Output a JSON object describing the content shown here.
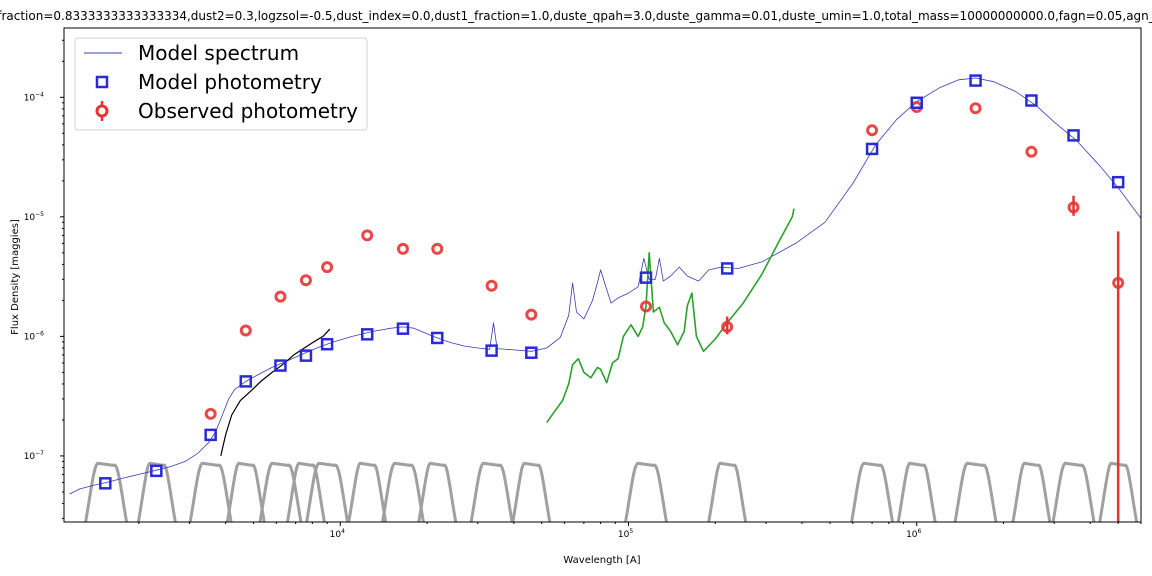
{
  "chart_data": {
    "type": "scatter",
    "title": "fraction=0.8333333333333334,dust2=0.3,logzsol=-0.5,dust_index=0.0,dust1_fraction=1.0,duste_qpah=3.0,duste_gamma=0.01,duste_umin=1.0,total_mass=10000000000.0,fagn=0.05,agn_",
    "xlabel": "Wavelength [A]",
    "ylabel": "Flux Density [maggies]",
    "xscale": "log",
    "yscale": "log",
    "xlim": [
      1100,
      6000000
    ],
    "ylim": [
      2.8e-08,
      0.00038
    ],
    "xticks": [
      {
        "value": 10000,
        "base": "10",
        "exp": "4"
      },
      {
        "value": 100000,
        "base": "10",
        "exp": "5"
      },
      {
        "value": 1000000,
        "base": "10",
        "exp": "6"
      }
    ],
    "yticks": [
      {
        "value": 1e-07,
        "base": "10",
        "exp": "−7"
      },
      {
        "value": 1e-06,
        "base": "10",
        "exp": "−6"
      },
      {
        "value": 1e-05,
        "base": "10",
        "exp": "−5"
      },
      {
        "value": 0.0001,
        "base": "10",
        "exp": "−4"
      }
    ],
    "legend_position": "top-left",
    "legend": [
      {
        "label": "Model spectrum",
        "marker": "line",
        "color": "#3b3bb3"
      },
      {
        "label": "Model photometry",
        "marker": "square",
        "color": "#2b2bd6"
      },
      {
        "label": "Observed photometry",
        "marker": "circle-errorbar",
        "color": "#e83333"
      }
    ],
    "series": [
      {
        "name": "Model spectrum",
        "color": "#3b3bb3",
        "points": [
          [
            1150,
            4.8e-08
          ],
          [
            1250,
            5.3e-08
          ],
          [
            1400,
            5.7e-08
          ],
          [
            1550,
            6e-08
          ],
          [
            1800,
            6.6e-08
          ],
          [
            2000,
            7e-08
          ],
          [
            2300,
            7.6e-08
          ],
          [
            2600,
            8.2e-08
          ],
          [
            2900,
            9e-08
          ],
          [
            3200,
            1.05e-07
          ],
          [
            3500,
            1.3e-07
          ],
          [
            3700,
            1.6e-07
          ],
          [
            3900,
            2.2e-07
          ],
          [
            4100,
            3e-07
          ],
          [
            4300,
            3.6e-07
          ],
          [
            4700,
            4.2e-07
          ],
          [
            5200,
            4.8e-07
          ],
          [
            5800,
            5.5e-07
          ],
          [
            6500,
            6.2e-07
          ],
          [
            7500,
            7.2e-07
          ],
          [
            8500,
            8.2e-07
          ],
          [
            9500,
            9e-07
          ],
          [
            11000,
            1e-06
          ],
          [
            13000,
            1.1e-06
          ],
          [
            15000,
            1.17e-06
          ],
          [
            16500,
            1.2e-06
          ],
          [
            18000,
            1.17e-06
          ],
          [
            21000,
            1e-06
          ],
          [
            24000,
            8.9e-07
          ],
          [
            27000,
            8.3e-07
          ],
          [
            30000,
            8e-07
          ],
          [
            33000,
            7.8e-07
          ],
          [
            34000,
            1.3e-06
          ],
          [
            35000,
            7.9e-07
          ],
          [
            40000,
            7.7e-07
          ],
          [
            46000,
            7.5e-07
          ],
          [
            52000,
            8e-07
          ],
          [
            58000,
            9.8e-07
          ],
          [
            62000,
            1.5e-06
          ],
          [
            64000,
            2.8e-06
          ],
          [
            66000,
            1.6e-06
          ],
          [
            70000,
            1.4e-06
          ],
          [
            75000,
            2e-06
          ],
          [
            78000,
            2.8e-06
          ],
          [
            80000,
            3.6e-06
          ],
          [
            83000,
            2.7e-06
          ],
          [
            87000,
            1.9e-06
          ],
          [
            92000,
            2.1e-06
          ],
          [
            100000,
            2.3e-06
          ],
          [
            108000,
            2.6e-06
          ],
          [
            113000,
            4.5e-06
          ],
          [
            118000,
            3e-06
          ],
          [
            124000,
            3e-06
          ],
          [
            128000,
            4.5e-06
          ],
          [
            132000,
            2.9e-06
          ],
          [
            140000,
            3.2e-06
          ],
          [
            150000,
            3.8e-06
          ],
          [
            160000,
            3.2e-06
          ],
          [
            175000,
            2.9e-06
          ],
          [
            190000,
            3.6e-06
          ],
          [
            210000,
            3.8e-06
          ],
          [
            240000,
            3.7e-06
          ],
          [
            290000,
            4.2e-06
          ],
          [
            380000,
            6e-06
          ],
          [
            480000,
            9e-06
          ],
          [
            600000,
            1.9e-05
          ],
          [
            720000,
            4e-05
          ],
          [
            850000,
            6.5e-05
          ],
          [
            1000000,
            9.2e-05
          ],
          [
            1200000,
            0.00012
          ],
          [
            1400000,
            0.00014
          ],
          [
            1600000,
            0.000145
          ],
          [
            1850000,
            0.000135
          ],
          [
            2200000,
            0.000112
          ],
          [
            2600000,
            8.5e-05
          ],
          [
            3000000,
            6.2e-05
          ],
          [
            3600000,
            4.3e-05
          ],
          [
            4300000,
            2.7e-05
          ],
          [
            5000000,
            1.75e-05
          ],
          [
            6000000,
            9.7e-06
          ]
        ]
      },
      {
        "name": "Model photometry",
        "color": "#2b2bd6",
        "points": [
          [
            1530,
            5.9e-08
          ],
          [
            2300,
            7.5e-08
          ],
          [
            3550,
            1.5e-07
          ],
          [
            4700,
            4.2e-07
          ],
          [
            6200,
            5.7e-07
          ],
          [
            7600,
            6.9e-07
          ],
          [
            9000,
            8.6e-07
          ],
          [
            12400,
            1.04e-06
          ],
          [
            16500,
            1.16e-06
          ],
          [
            21700,
            9.7e-07
          ],
          [
            33500,
            7.6e-07
          ],
          [
            46000,
            7.3e-07
          ],
          [
            115000,
            3.1e-06
          ],
          [
            220000,
            3.7e-06
          ],
          [
            700000,
            3.7e-05
          ],
          [
            1000000,
            9e-05
          ],
          [
            1600000,
            0.000138
          ],
          [
            2500000,
            9.4e-05
          ],
          [
            3500000,
            4.8e-05
          ],
          [
            5000000,
            1.95e-05
          ]
        ]
      },
      {
        "name": "Observed photometry",
        "color": "#e83333",
        "points": [
          [
            3550,
            2.25e-07,
            0.0
          ],
          [
            4700,
            1.12e-06,
            0.0
          ],
          [
            6200,
            2.15e-06,
            0.0
          ],
          [
            7600,
            2.95e-06,
            0.0
          ],
          [
            9000,
            3.8e-06,
            0.0
          ],
          [
            12400,
            7e-06,
            0.0
          ],
          [
            16500,
            5.4e-06,
            0.0
          ],
          [
            21700,
            5.4e-06,
            0.0
          ],
          [
            33500,
            2.65e-06,
            0.0
          ],
          [
            46000,
            1.52e-06,
            0.0
          ],
          [
            115000,
            1.78e-06,
            0.0
          ],
          [
            220000,
            1.2e-06,
            0.22
          ],
          [
            700000,
            5.3e-05,
            0.0
          ],
          [
            1000000,
            8.3e-05,
            0.0
          ],
          [
            1600000,
            8.1e-05,
            0.0
          ],
          [
            2500000,
            3.5e-05,
            0.0
          ],
          [
            3500000,
            1.2e-05,
            0.25
          ],
          [
            5000000,
            2.8e-06,
            1.7
          ]
        ]
      },
      {
        "name": "Observed spectrum (optical)",
        "color": "#000000",
        "points": [
          [
            3850,
            1e-07
          ],
          [
            4000,
            1.5e-07
          ],
          [
            4200,
            2.2e-07
          ],
          [
            4500,
            2.9e-07
          ],
          [
            4900,
            3.5e-07
          ],
          [
            5300,
            4.2e-07
          ],
          [
            5800,
            5e-07
          ],
          [
            6300,
            5.8e-07
          ],
          [
            6900,
            7e-07
          ],
          [
            7500,
            8e-07
          ],
          [
            8100,
            9e-07
          ],
          [
            8700,
            1e-06
          ],
          [
            9200,
            1.15e-06
          ]
        ]
      },
      {
        "name": "Observed spectrum (infrared)",
        "color": "#2ca02c",
        "points": [
          [
            52000,
            1.9e-07
          ],
          [
            55000,
            2.3e-07
          ],
          [
            59000,
            2.9e-07
          ],
          [
            62000,
            4e-07
          ],
          [
            64000,
            5.8e-07
          ],
          [
            67000,
            6.5e-07
          ],
          [
            70000,
            5e-07
          ],
          [
            74000,
            4.5e-07
          ],
          [
            78000,
            5.5e-07
          ],
          [
            80000,
            5.3e-07
          ],
          [
            84000,
            4.1e-07
          ],
          [
            88000,
            6e-07
          ],
          [
            92000,
            6.5e-07
          ],
          [
            96000,
            1e-06
          ],
          [
            102000,
            1.25e-06
          ],
          [
            108000,
            1e-06
          ],
          [
            112000,
            1.2e-06
          ],
          [
            115000,
            1.8e-06
          ],
          [
            118000,
            5e-06
          ],
          [
            122000,
            1.6e-06
          ],
          [
            128000,
            1.75e-06
          ],
          [
            133000,
            1.3e-06
          ],
          [
            140000,
            1.1e-06
          ],
          [
            148000,
            8.5e-07
          ],
          [
            156000,
            1.1e-06
          ],
          [
            160000,
            1.8e-06
          ],
          [
            166000,
            2.3e-06
          ],
          [
            172000,
            1e-06
          ],
          [
            182000,
            7.5e-07
          ],
          [
            200000,
            9.5e-07
          ],
          [
            220000,
            1.3e-06
          ],
          [
            250000,
            1.9e-06
          ],
          [
            290000,
            3.3e-06
          ],
          [
            330000,
            6e-06
          ],
          [
            370000,
            1e-05
          ],
          [
            375000,
            1.17e-05
          ]
        ]
      },
      {
        "name": "Filter curves",
        "color": "#a0a0a0",
        "points": [
          [
            1540,
            9e-08
          ],
          [
            2310,
            9e-08
          ],
          [
            3550,
            9e-08
          ],
          [
            4700,
            9e-08
          ],
          [
            6200,
            9e-08
          ],
          [
            7600,
            9e-08
          ],
          [
            9000,
            9e-08
          ],
          [
            12400,
            9e-08
          ],
          [
            16500,
            9e-08
          ],
          [
            21700,
            9e-08
          ],
          [
            33500,
            9e-08
          ],
          [
            46000,
            9e-08
          ],
          [
            115000,
            9e-08
          ],
          [
            220000,
            9e-08
          ],
          [
            700000,
            9e-08
          ],
          [
            1000000,
            9e-08
          ],
          [
            1600000,
            9e-08
          ],
          [
            2500000,
            9e-08
          ],
          [
            3500000,
            9e-08
          ],
          [
            5000000,
            9e-08
          ]
        ]
      }
    ]
  }
}
